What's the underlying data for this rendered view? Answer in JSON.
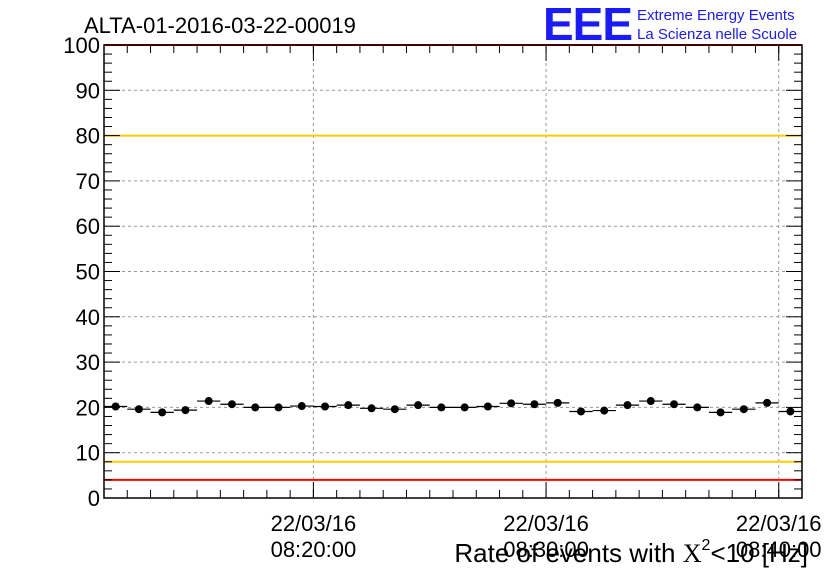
{
  "chart_data": {
    "type": "scatter",
    "title": "ALTA-01-2016-03-22-00019",
    "xlabel_main": "Rate of events with ",
    "xlabel_chi": "X",
    "xlabel_sup": "2",
    "xlabel_tail": "<10 [Hz]",
    "ylim": [
      0,
      100
    ],
    "yticks": [
      "0",
      "10",
      "20",
      "30",
      "40",
      "50",
      "60",
      "70",
      "80",
      "90",
      "100"
    ],
    "xlim": [
      0,
      30
    ],
    "xticks": [
      {
        "x": 9,
        "date": "22/03/16",
        "time": "08:20:00"
      },
      {
        "x": 19,
        "date": "22/03/16",
        "time": "08:30:00"
      },
      {
        "x": 29,
        "date": "22/03/16",
        "time": "08:40:00"
      }
    ],
    "grid": true,
    "reference_lines": [
      {
        "value": 100,
        "color": "#ff0000"
      },
      {
        "value": 80,
        "color": "#ffcc00"
      },
      {
        "value": 8,
        "color": "#ffcc00"
      },
      {
        "value": 4,
        "color": "#ff0000"
      }
    ],
    "points": [
      {
        "x": 0.5,
        "y": 20.2
      },
      {
        "x": 1.5,
        "y": 19.6
      },
      {
        "x": 2.5,
        "y": 18.9
      },
      {
        "x": 3.5,
        "y": 19.4
      },
      {
        "x": 4.5,
        "y": 21.4
      },
      {
        "x": 5.5,
        "y": 20.7
      },
      {
        "x": 6.5,
        "y": 20.0
      },
      {
        "x": 7.5,
        "y": 20.0
      },
      {
        "x": 8.5,
        "y": 20.3
      },
      {
        "x": 9.5,
        "y": 20.2
      },
      {
        "x": 10.5,
        "y": 20.5
      },
      {
        "x": 11.5,
        "y": 19.8
      },
      {
        "x": 12.5,
        "y": 19.6
      },
      {
        "x": 13.5,
        "y": 20.5
      },
      {
        "x": 14.5,
        "y": 20.0
      },
      {
        "x": 15.5,
        "y": 20.0
      },
      {
        "x": 16.5,
        "y": 20.2
      },
      {
        "x": 17.5,
        "y": 20.9
      },
      {
        "x": 18.5,
        "y": 20.7
      },
      {
        "x": 19.5,
        "y": 21.0
      },
      {
        "x": 20.5,
        "y": 19.1
      },
      {
        "x": 21.5,
        "y": 19.3
      },
      {
        "x": 22.5,
        "y": 20.5
      },
      {
        "x": 23.5,
        "y": 21.4
      },
      {
        "x": 24.5,
        "y": 20.7
      },
      {
        "x": 25.5,
        "y": 20.0
      },
      {
        "x": 26.5,
        "y": 18.9
      },
      {
        "x": 27.5,
        "y": 19.6
      },
      {
        "x": 28.5,
        "y": 21.0
      },
      {
        "x": 29.5,
        "y": 19.1
      }
    ],
    "point_color": "#000000"
  },
  "logo": {
    "mark": "EEE",
    "line1": "Extreme Energy Events",
    "line2": "La Scienza nelle Scuole",
    "color": "#1a1aff"
  }
}
